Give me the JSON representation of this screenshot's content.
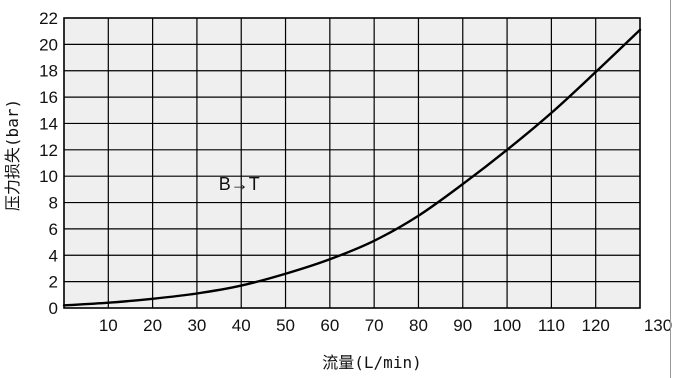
{
  "chart_data": {
    "type": "line",
    "title": "",
    "xlabel": "流量(L/min)",
    "ylabel": "压力损失(bar)",
    "xlim": [
      0,
      130
    ],
    "ylim": [
      0,
      22
    ],
    "x_ticks": [
      10,
      20,
      30,
      40,
      50,
      60,
      70,
      80,
      90,
      100,
      110,
      120,
      130
    ],
    "y_ticks": [
      0,
      2,
      4,
      6,
      8,
      10,
      12,
      14,
      16,
      18,
      20,
      22
    ],
    "grid": true,
    "plot_background": "#efefef",
    "annotations": [
      {
        "text": "B→T",
        "x": 39,
        "y": 9.5
      }
    ],
    "series": [
      {
        "color": "#000000",
        "x": [
          0,
          10,
          20,
          30,
          40,
          50,
          60,
          70,
          80,
          90,
          100,
          110,
          120,
          130
        ],
        "y": [
          0.2,
          0.4,
          0.7,
          1.1,
          1.7,
          2.6,
          3.7,
          5.1,
          7.0,
          9.4,
          12.0,
          14.8,
          17.9,
          21.1
        ]
      }
    ]
  }
}
